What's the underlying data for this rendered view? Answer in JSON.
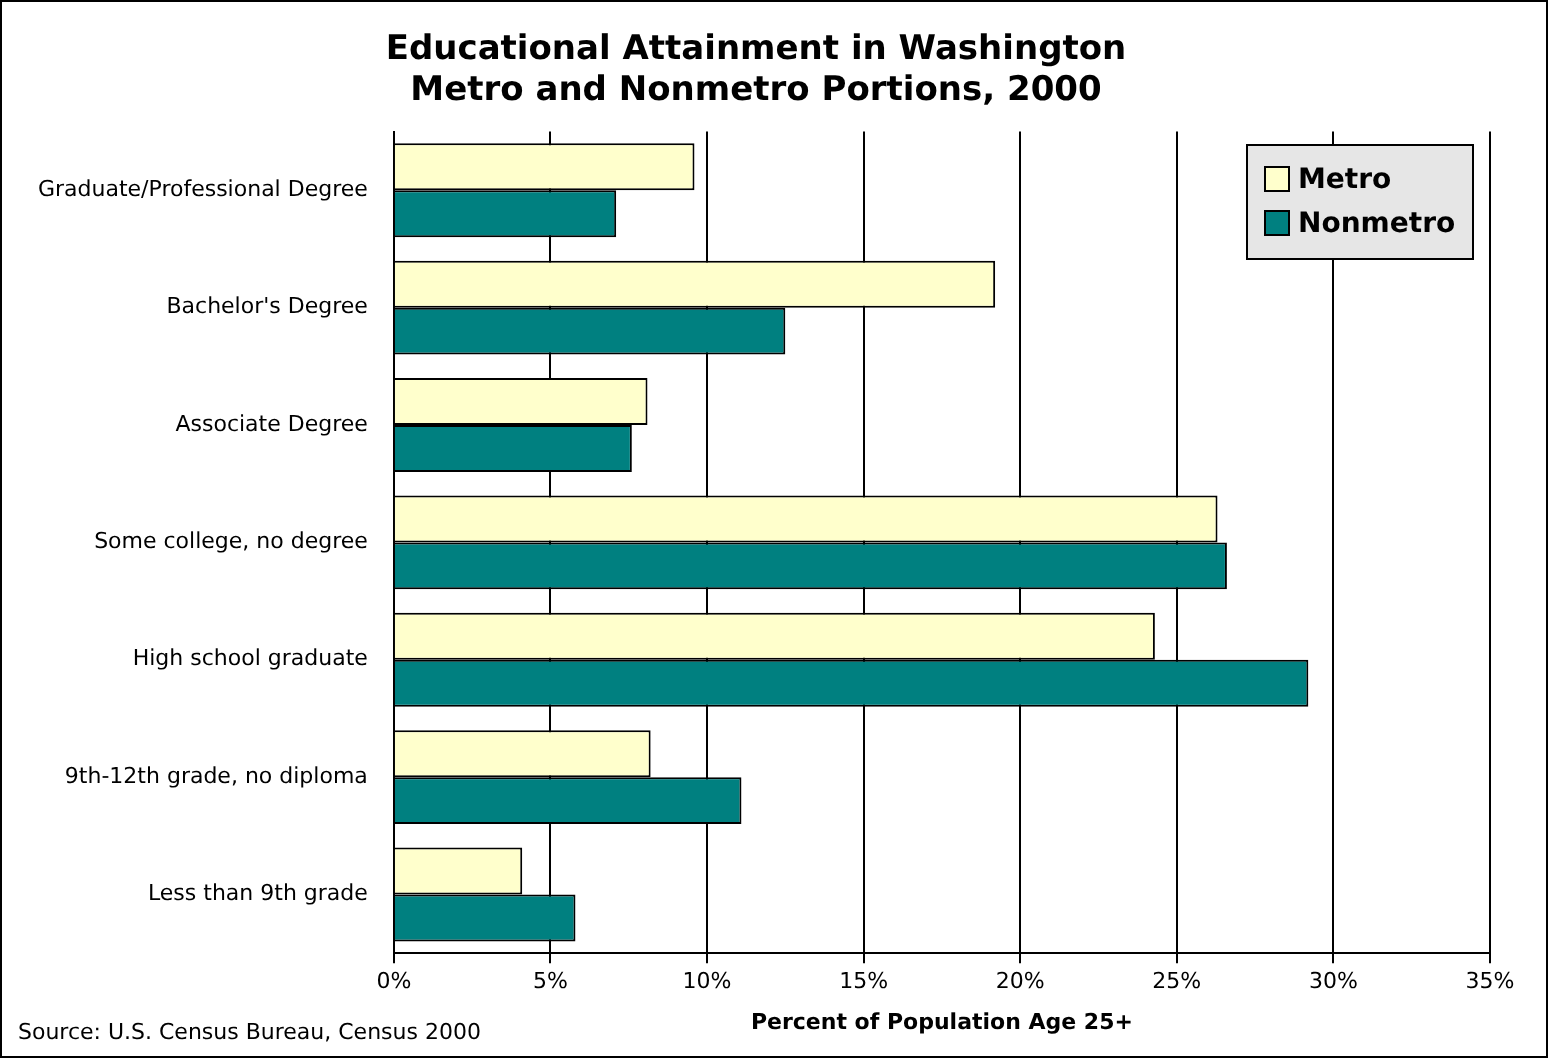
{
  "chart_data": {
    "type": "bar",
    "orientation": "horizontal",
    "title": "Educational Attainment in Washington\nMetro and Nonmetro Portions, 2000",
    "xlabel": "Percent of Population Age 25+",
    "annotations": [
      "Source: U.S. Census Bureau, Census 2000"
    ],
    "categories": [
      "Graduate/Professional Degree",
      "Bachelor's Degree",
      "Associate Degree",
      "Some college, no degree",
      "High school graduate",
      "9th-12th grade, no diploma",
      "Less than 9th grade"
    ],
    "series": [
      {
        "name": "Metro",
        "color": "#ffffcc",
        "values": [
          9.6,
          19.2,
          8.1,
          26.3,
          24.3,
          8.2,
          4.1
        ]
      },
      {
        "name": "Nonmetro",
        "color": "#008080",
        "values": [
          7.1,
          12.5,
          7.6,
          26.6,
          29.2,
          11.1,
          5.8
        ]
      }
    ],
    "xlim": [
      0,
      35
    ],
    "xticks": [
      {
        "value": 0,
        "label": "0%"
      },
      {
        "value": 5,
        "label": "5%"
      },
      {
        "value": 10,
        "label": "10%"
      },
      {
        "value": 15,
        "label": "15%"
      },
      {
        "value": 20,
        "label": "20%"
      },
      {
        "value": 25,
        "label": "25%"
      },
      {
        "value": 30,
        "label": "30%"
      },
      {
        "value": 35,
        "label": "35%"
      }
    ],
    "grid": "x",
    "legend": "top right"
  }
}
